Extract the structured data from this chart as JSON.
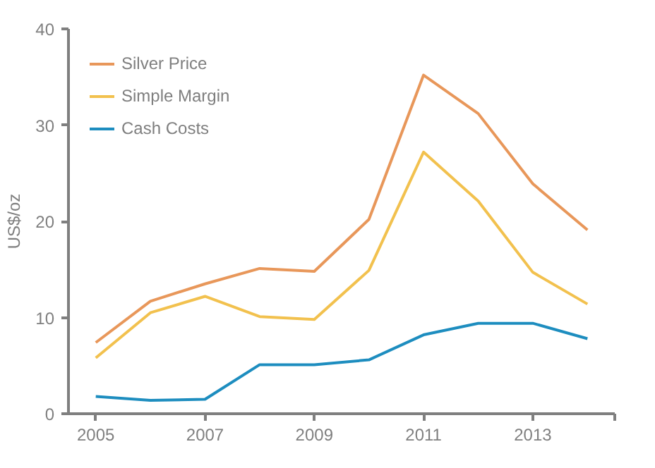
{
  "chart_data": {
    "type": "line",
    "ylabel": "US$/oz",
    "x": [
      2005,
      2006,
      2007,
      2008,
      2009,
      2010,
      2011,
      2012,
      2013,
      2014
    ],
    "series": [
      {
        "name": "Silver Price",
        "color": "#e8975a",
        "values": [
          7.4,
          11.7,
          13.5,
          15.1,
          14.8,
          20.2,
          35.2,
          31.2,
          23.9,
          19.1
        ]
      },
      {
        "name": "Simple Margin",
        "color": "#f2c14e",
        "values": [
          5.8,
          10.5,
          12.2,
          10.1,
          9.8,
          14.9,
          27.2,
          22.1,
          14.7,
          11.4
        ]
      },
      {
        "name": "Cash Costs",
        "color": "#1d8dbf",
        "values": [
          1.8,
          1.4,
          1.5,
          5.1,
          5.1,
          5.6,
          8.2,
          9.4,
          9.4,
          7.8
        ]
      }
    ],
    "xlim": [
      2004.5,
      2014.5
    ],
    "xticks": [
      2005,
      2007,
      2009,
      2011,
      2013,
      {
        "value": 2014.5,
        "label": null
      }
    ],
    "ylim": [
      0,
      40
    ],
    "yticks": [
      0,
      10,
      20,
      30,
      40
    ],
    "grid": false,
    "legend": "top left",
    "marker": "none",
    "line_style": "solid"
  }
}
